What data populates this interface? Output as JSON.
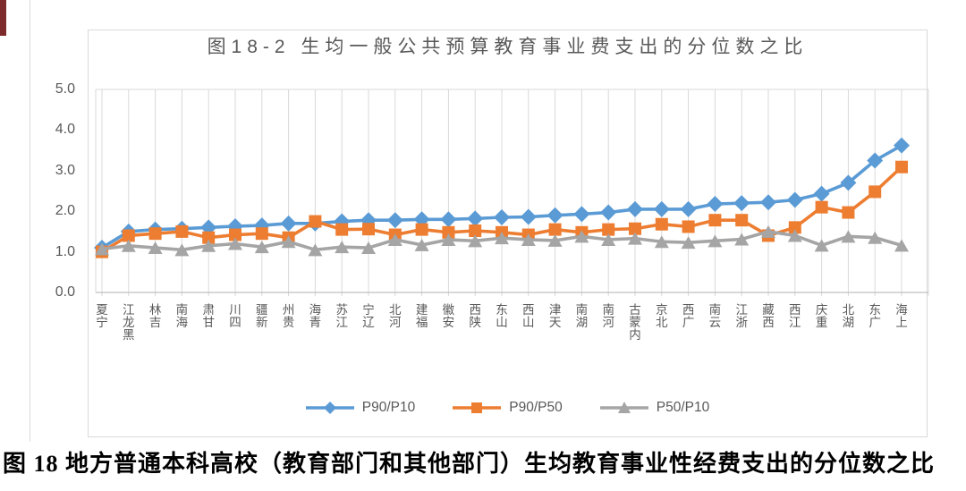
{
  "page": {
    "caption": "图 18 地方普通本科高校（教育部门和其他部门）生均教育事业性经费支出的分位数之比"
  },
  "chart_data": {
    "type": "line",
    "title": "图18-2 生均一般公共预算教育事业费支出的分位数之比",
    "categories": [
      "宁夏",
      "黑龙江",
      "吉林",
      "海南",
      "甘肃",
      "四川",
      "新疆",
      "贵州",
      "青海",
      "江苏",
      "辽宁",
      "河北",
      "福建",
      "安徽",
      "陕西",
      "山东",
      "山西",
      "天津",
      "湖南",
      "河南",
      "内蒙古",
      "北京",
      "广西",
      "云南",
      "浙江",
      "西藏",
      "江西",
      "重庆",
      "湖北",
      "广东",
      "上海"
    ],
    "series": [
      {
        "name": "P90/P10",
        "marker": "diamond",
        "color": "#5B9BD5",
        "values": [
          1.1,
          1.5,
          1.55,
          1.57,
          1.6,
          1.63,
          1.65,
          1.7,
          1.7,
          1.75,
          1.78,
          1.78,
          1.8,
          1.8,
          1.82,
          1.85,
          1.86,
          1.9,
          1.93,
          1.97,
          2.05,
          2.05,
          2.05,
          2.18,
          2.2,
          2.22,
          2.28,
          2.43,
          2.7,
          3.25,
          3.62
        ]
      },
      {
        "name": "P90/P50",
        "marker": "square",
        "color": "#ED7D31",
        "values": [
          1.0,
          1.4,
          1.45,
          1.5,
          1.35,
          1.42,
          1.45,
          1.35,
          1.75,
          1.55,
          1.56,
          1.42,
          1.55,
          1.48,
          1.52,
          1.48,
          1.42,
          1.55,
          1.48,
          1.55,
          1.57,
          1.68,
          1.62,
          1.78,
          1.78,
          1.4,
          1.6,
          2.1,
          1.97,
          2.48,
          3.09
        ]
      },
      {
        "name": "P50/P10",
        "marker": "triangle",
        "color": "#A5A5A5",
        "values": [
          1.07,
          1.15,
          1.1,
          1.05,
          1.15,
          1.2,
          1.12,
          1.25,
          1.05,
          1.12,
          1.1,
          1.3,
          1.17,
          1.3,
          1.27,
          1.34,
          1.3,
          1.28,
          1.38,
          1.3,
          1.33,
          1.25,
          1.23,
          1.27,
          1.31,
          1.5,
          1.4,
          1.16,
          1.38,
          1.35,
          1.16
        ]
      }
    ],
    "ylim": [
      0,
      5
    ],
    "ytick_labels": [
      "0.0",
      "1.0",
      "2.0",
      "3.0",
      "4.0",
      "5.0"
    ],
    "xlabel": "",
    "ylabel": "",
    "grid": "vertical-only",
    "legend_position": "bottom"
  },
  "colors": {
    "grid": "#D9D9D9",
    "axis": "#BFBFBF",
    "text": "#595959",
    "frame": "#D9D9D9",
    "corner_mark": "#7E2B2B"
  }
}
